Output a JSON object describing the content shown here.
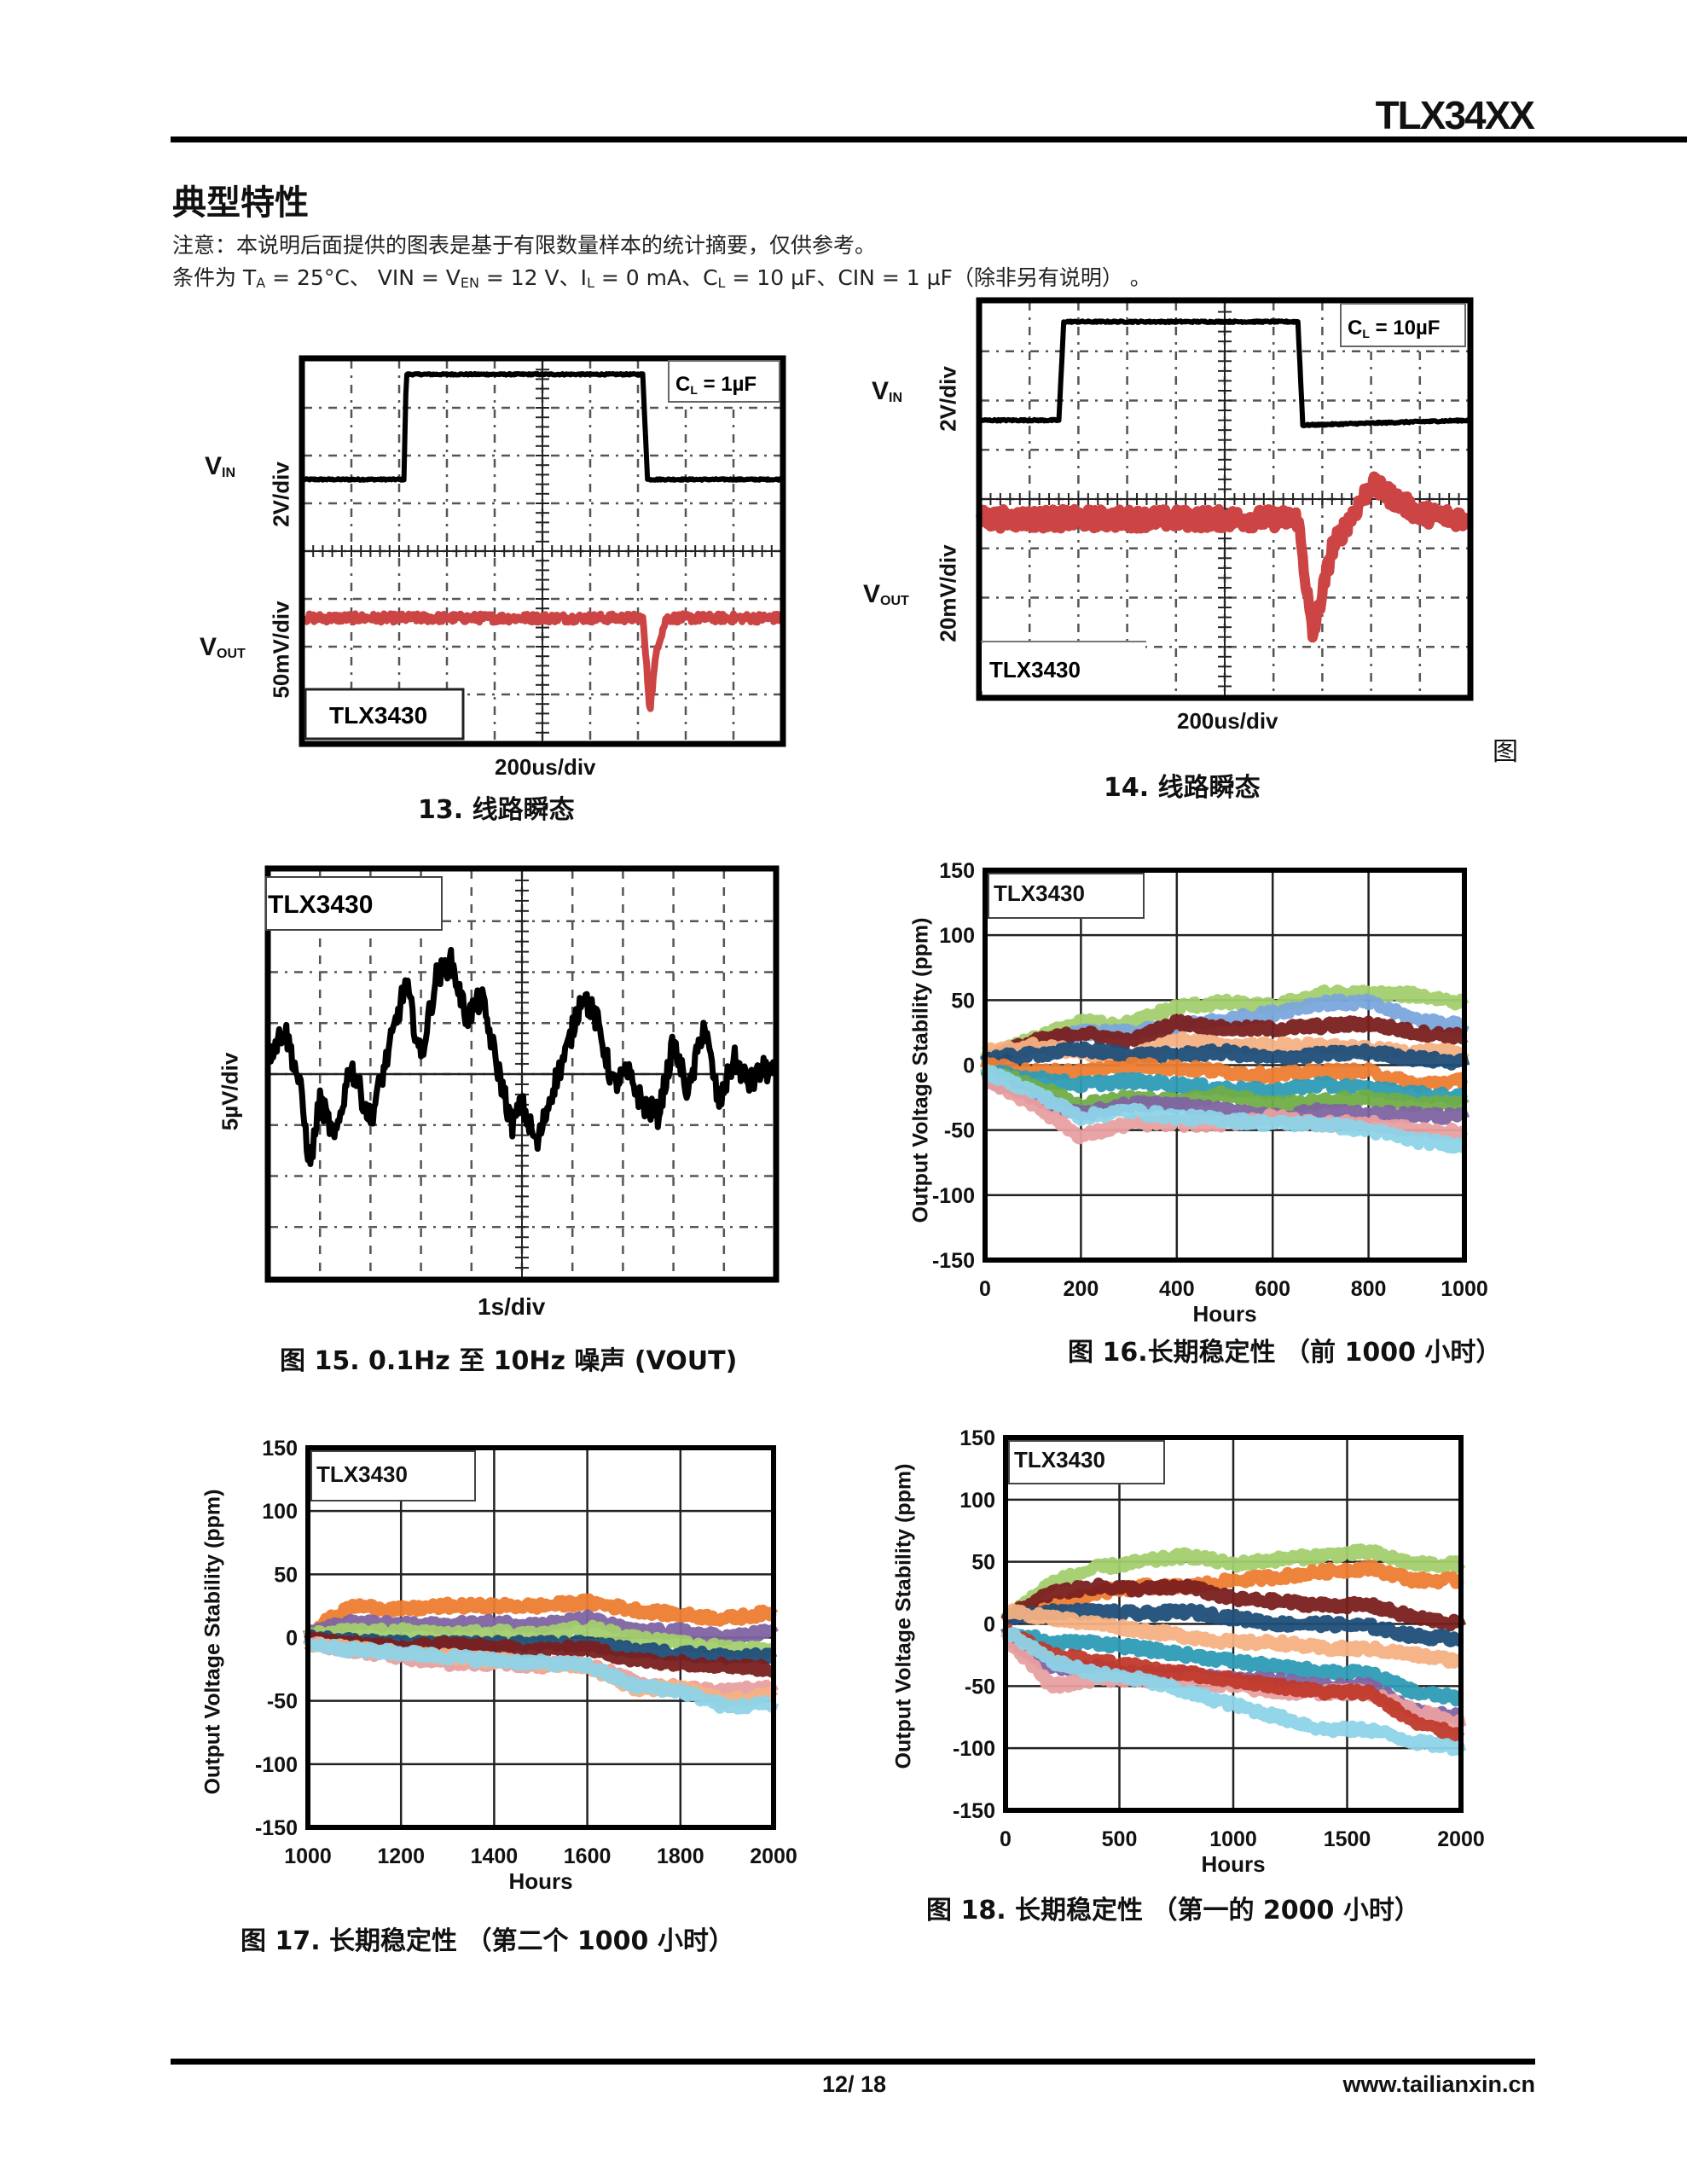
{
  "header": {
    "part_number": "TLX34XX"
  },
  "section": {
    "title": "典型特性",
    "note": "注意：本说明后面提供的图表是基于有限数量样本的统计摘要，仅供参考。",
    "conditions": {
      "prefix": "条件为 T",
      "ta_sub": "A",
      "ta_val": " = 25°C、 VIN = V",
      "en_sub": "EN",
      "mid": " = 12 V、I",
      "il_sub": "L",
      "mid2": " = 0 mA、C",
      "cl_sub": "L",
      "tail": " = 10 µF、CIN = 1 µF（除非另有说明） 。"
    }
  },
  "figures": {
    "fig13": {
      "caption": "13. 线路瞬态",
      "vin_label": "V",
      "vin_sub": "IN",
      "vout_label": "V",
      "vout_sub": "OUT",
      "vin_scale": "2V/div",
      "vout_scale": "50mV/div",
      "time_scale": "200us/div",
      "cl_label": "C",
      "cl_sub": "L",
      "cl_value": " = 1µF",
      "device": "TLX3430"
    },
    "fig14": {
      "caption": "14. 线路瞬态",
      "caption_prefix": "图",
      "vin_label": "V",
      "vin_sub": "IN",
      "vout_label": "V",
      "vout_sub": "OUT",
      "vin_scale": "2V/div",
      "vout_scale": "20mV/div",
      "time_scale": "200us/div",
      "cl_label": "C",
      "cl_sub": "L",
      "cl_value": " = 10µF",
      "device": "TLX3430"
    },
    "fig15": {
      "caption": "图 15. 0.1Hz 至 10Hz 噪声 (VOUT)",
      "y_scale": "5µV/div",
      "time_scale": "1s/div",
      "device": "TLX3430"
    },
    "fig16": {
      "caption": "图 16.长期稳定性 （前 1000 小时）"
    },
    "fig17": {
      "caption": "图 17. 长期稳定性 （第二个 1000 小时）"
    },
    "fig18": {
      "caption": "图 18. 长期稳定性 （第一的 2000 小时）"
    }
  },
  "colors": {
    "vin_trace": "#000000",
    "vout_trace": "#cc4444",
    "grid": "#555555"
  },
  "chart_data": [
    {
      "id": "fig13",
      "type": "line",
      "title": "13. 线路瞬态",
      "xlabel": "200us/div",
      "x_divisions": 10,
      "y_divisions": 8,
      "series": [
        {
          "name": "VIN",
          "color": "#000000",
          "unit": "div",
          "x": [
            0,
            2.1,
            2.15,
            7.1,
            7.2,
            10
          ],
          "y": [
            5.5,
            5.5,
            7.7,
            7.7,
            5.5,
            5.5
          ]
        },
        {
          "name": "VOUT",
          "color": "#cc4444",
          "unit": "div",
          "x": [
            0,
            7.1,
            7.25,
            7.4,
            7.6,
            10
          ],
          "y": [
            2.6,
            2.6,
            0.7,
            2.0,
            2.6,
            2.6
          ]
        }
      ],
      "annotations": [
        "CL = 1µF",
        "TLX3430"
      ]
    },
    {
      "id": "fig14",
      "type": "line",
      "title": "14. 线路瞬态",
      "xlabel": "200us/div",
      "x_divisions": 10,
      "y_divisions": 8,
      "series": [
        {
          "name": "VIN",
          "color": "#000000",
          "unit": "div",
          "x": [
            0,
            1.6,
            1.7,
            6.5,
            6.6,
            10
          ],
          "y": [
            5.6,
            5.6,
            7.6,
            7.6,
            5.5,
            5.6
          ]
        },
        {
          "name": "VOUT",
          "color": "#cc4444",
          "unit": "div",
          "x": [
            0,
            6.5,
            6.8,
            7.2,
            8.0,
            9.0,
            10
          ],
          "y": [
            3.6,
            3.6,
            1.2,
            3.0,
            4.3,
            3.7,
            3.6
          ]
        }
      ],
      "annotations": [
        "CL = 10µF",
        "TLX3430"
      ]
    },
    {
      "id": "fig15",
      "type": "line",
      "title": "图 15. 0.1Hz 至 10Hz 噪声 (VOUT)",
      "xlabel": "1s/div",
      "ylabel": "5µV/div",
      "x_divisions": 10,
      "y_divisions": 8,
      "series": [
        {
          "name": "VOUT noise",
          "color": "#000000",
          "unit": "div",
          "x": [
            0,
            0.3,
            0.6,
            0.8,
            1.0,
            1.3,
            1.6,
            2.0,
            2.4,
            2.7,
            3.0,
            3.3,
            3.6,
            3.9,
            4.2,
            4.5,
            4.8,
            5.0,
            5.3,
            5.6,
            5.9,
            6.2,
            6.5,
            6.8,
            7.1,
            7.4,
            7.7,
            8.0,
            8.3,
            8.6,
            8.9,
            9.2,
            9.5,
            9.8,
            10
          ],
          "y": [
            4.4,
            4.9,
            3.8,
            2.2,
            3.5,
            2.7,
            4.2,
            3.1,
            4.6,
            5.8,
            4.3,
            5.9,
            6.2,
            5.1,
            5.5,
            4.2,
            3.0,
            3.4,
            2.6,
            3.7,
            4.5,
            5.6,
            5.0,
            3.8,
            4.0,
            3.4,
            3.2,
            4.6,
            3.6,
            5.0,
            3.4,
            4.3,
            3.8,
            4.1,
            4.0
          ]
        }
      ],
      "annotations": [
        "TLX3430"
      ]
    },
    {
      "id": "fig16",
      "type": "line",
      "title": "图 16.长期稳定性 （前 1000 小时）",
      "xlabel": "Hours",
      "ylabel": "Output Voltage Stability (ppm)",
      "xlim": [
        0,
        1000
      ],
      "ylim": [
        -150,
        150
      ],
      "xticks": [
        0,
        200,
        400,
        600,
        800,
        1000
      ],
      "yticks": [
        -150,
        -100,
        -50,
        0,
        50,
        100,
        150
      ],
      "grid": true,
      "legend": "TLX3430 (top-left)",
      "x": [
        0,
        100,
        200,
        300,
        400,
        500,
        600,
        700,
        800,
        900,
        1000
      ],
      "series": [
        {
          "name": "s1",
          "color": "#a3cf6e",
          "values": [
            5,
            20,
            33,
            32,
            45,
            48,
            45,
            55,
            55,
            54,
            48
          ]
        },
        {
          "name": "s2",
          "color": "#7aa6dc",
          "values": [
            5,
            15,
            25,
            25,
            30,
            35,
            40,
            48,
            48,
            35,
            30
          ]
        },
        {
          "name": "s3",
          "color": "#7a1f1f",
          "values": [
            5,
            18,
            25,
            18,
            33,
            28,
            28,
            30,
            32,
            25,
            22
          ]
        },
        {
          "name": "s4",
          "color": "#f4b183",
          "values": [
            10,
            15,
            10,
            5,
            20,
            15,
            15,
            15,
            12,
            10,
            10
          ]
        },
        {
          "name": "s5",
          "color": "#1f4e79",
          "values": [
            5,
            8,
            12,
            8,
            8,
            10,
            5,
            8,
            10,
            5,
            2
          ]
        },
        {
          "name": "s6",
          "color": "#ed7d31",
          "values": [
            0,
            -5,
            -5,
            0,
            -2,
            -5,
            -8,
            -5,
            -5,
            -15,
            -12
          ]
        },
        {
          "name": "s7",
          "color": "#2e9bb5",
          "values": [
            -5,
            -10,
            -15,
            -12,
            -15,
            -18,
            -20,
            -15,
            -18,
            -22,
            -25
          ]
        },
        {
          "name": "s8",
          "color": "#70ad47",
          "values": [
            -5,
            -15,
            -30,
            -25,
            -28,
            -22,
            -30,
            -28,
            -25,
            -30,
            -30
          ]
        },
        {
          "name": "s9",
          "color": "#8064a2",
          "values": [
            -10,
            -25,
            -38,
            -30,
            -30,
            -35,
            -40,
            -35,
            -38,
            -38,
            -40
          ]
        },
        {
          "name": "s10",
          "color": "#e8a0a0",
          "values": [
            -10,
            -30,
            -55,
            -45,
            -45,
            -45,
            -40,
            -45,
            -45,
            -50,
            -52
          ]
        },
        {
          "name": "s11",
          "color": "#8dd3e8",
          "values": [
            -5,
            -20,
            -40,
            -35,
            -40,
            -42,
            -45,
            -45,
            -50,
            -58,
            -62
          ]
        }
      ]
    },
    {
      "id": "fig17",
      "type": "line",
      "title": "图 17. 长期稳定性 （第二个 1000 小时）",
      "xlabel": "Hours",
      "ylabel": "Output Voltage Stability (ppm)",
      "xlim": [
        1000,
        2000
      ],
      "ylim": [
        -150,
        150
      ],
      "xticks": [
        1000,
        1200,
        1400,
        1600,
        1800,
        2000
      ],
      "yticks": [
        -150,
        -100,
        -50,
        0,
        50,
        100,
        150
      ],
      "grid": true,
      "legend": "TLX3430 (top-left)",
      "x": [
        1000,
        1100,
        1200,
        1300,
        1400,
        1500,
        1600,
        1700,
        1800,
        1900,
        2000
      ],
      "series": [
        {
          "name": "s1",
          "color": "#ed7d31",
          "values": [
            5,
            25,
            22,
            25,
            25,
            25,
            28,
            22,
            18,
            15,
            20
          ]
        },
        {
          "name": "s2",
          "color": "#8064a2",
          "values": [
            5,
            12,
            10,
            10,
            12,
            10,
            15,
            5,
            5,
            0,
            5
          ]
        },
        {
          "name": "s3",
          "color": "#a3cf6e",
          "values": [
            2,
            5,
            5,
            2,
            5,
            2,
            8,
            0,
            -5,
            -8,
            -10
          ]
        },
        {
          "name": "s4",
          "color": "#1f4e79",
          "values": [
            0,
            -3,
            -5,
            -5,
            -5,
            -5,
            -5,
            -10,
            -12,
            -15,
            -15
          ]
        },
        {
          "name": "s5",
          "color": "#7a1f1f",
          "values": [
            -2,
            -5,
            -8,
            -5,
            -8,
            -10,
            -8,
            -18,
            -20,
            -22,
            -25
          ]
        },
        {
          "name": "s6",
          "color": "#e8a0a0",
          "values": [
            -5,
            -10,
            -15,
            -20,
            -20,
            -22,
            -20,
            -35,
            -40,
            -42,
            -40
          ]
        },
        {
          "name": "s7",
          "color": "#f4b183",
          "values": [
            -5,
            -8,
            -12,
            -15,
            -18,
            -20,
            -22,
            -40,
            -40,
            -50,
            -45
          ]
        },
        {
          "name": "s8",
          "color": "#8dd3e8",
          "values": [
            -5,
            -10,
            -12,
            -15,
            -18,
            -20,
            -22,
            -38,
            -42,
            -55,
            -52
          ]
        }
      ]
    },
    {
      "id": "fig18",
      "type": "line",
      "title": "图 18. 长期稳定性 （第一的 2000 小时）",
      "xlabel": "Hours",
      "ylabel": "Output Voltage Stability (ppm)",
      "xlim": [
        0,
        2000
      ],
      "ylim": [
        -150,
        150
      ],
      "xticks": [
        0,
        500,
        1000,
        1500,
        2000
      ],
      "yticks": [
        -150,
        -100,
        -50,
        0,
        50,
        100,
        150
      ],
      "grid": true,
      "legend": "TLX3430 (top-left)",
      "x": [
        0,
        200,
        400,
        600,
        800,
        1000,
        1200,
        1400,
        1600,
        1800,
        2000
      ],
      "series": [
        {
          "name": "s1",
          "color": "#a3cf6e",
          "values": [
            5,
            33,
            45,
            50,
            55,
            48,
            52,
            55,
            58,
            48,
            48
          ]
        },
        {
          "name": "s2",
          "color": "#ed7d31",
          "values": [
            5,
            15,
            25,
            30,
            30,
            35,
            38,
            42,
            45,
            35,
            35
          ]
        },
        {
          "name": "s3",
          "color": "#7a1f1f",
          "values": [
            5,
            25,
            30,
            28,
            30,
            20,
            18,
            15,
            15,
            5,
            0
          ]
        },
        {
          "name": "s4",
          "color": "#1f4e79",
          "values": [
            5,
            10,
            10,
            8,
            10,
            5,
            0,
            0,
            -2,
            -10,
            -12
          ]
        },
        {
          "name": "s5",
          "color": "#f4b183",
          "values": [
            10,
            5,
            0,
            -5,
            -10,
            -15,
            -15,
            -20,
            -20,
            -25,
            -30
          ]
        },
        {
          "name": "s6",
          "color": "#2e9bb5",
          "values": [
            -5,
            -15,
            -15,
            -20,
            -25,
            -30,
            -35,
            -38,
            -40,
            -55,
            -60
          ]
        },
        {
          "name": "s7",
          "color": "#8064a2",
          "values": [
            -10,
            -35,
            -35,
            -40,
            -40,
            -45,
            -45,
            -50,
            -50,
            -70,
            -75
          ]
        },
        {
          "name": "s8",
          "color": "#e8a0a0",
          "values": [
            -10,
            -50,
            -45,
            -45,
            -45,
            -50,
            -55,
            -55,
            -55,
            -70,
            -80
          ]
        },
        {
          "name": "s9",
          "color": "#c0392b",
          "values": [
            -5,
            -25,
            -30,
            -35,
            -40,
            -45,
            -50,
            -55,
            -55,
            -80,
            -90
          ]
        },
        {
          "name": "s10",
          "color": "#8dd3e8",
          "values": [
            -5,
            -30,
            -40,
            -45,
            -55,
            -65,
            -75,
            -85,
            -85,
            -95,
            -100
          ]
        }
      ]
    }
  ],
  "footer": {
    "page": "12/ 18",
    "website": "www.tailianxin.cn"
  }
}
